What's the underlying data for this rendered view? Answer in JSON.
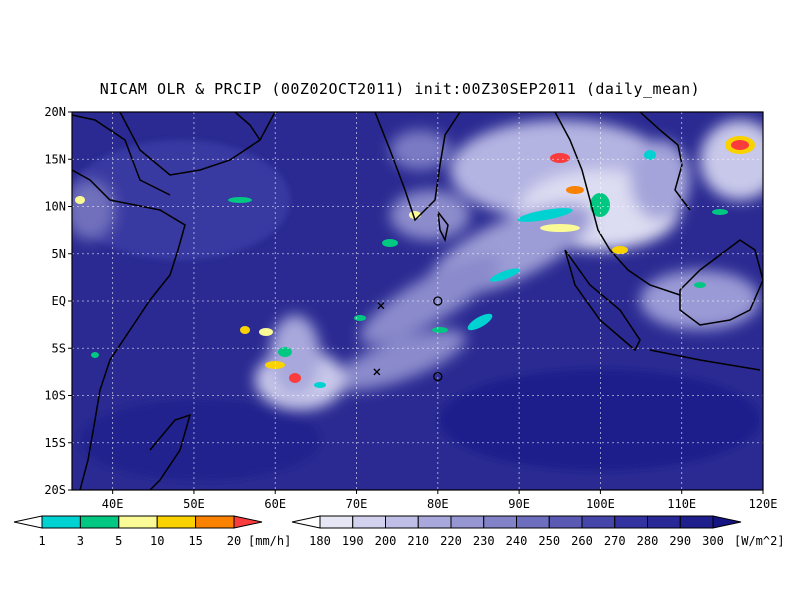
{
  "title": "NICAM OLR & PRCIP (00Z02OCT2011) init:00Z30SEP2011 (daily_mean)",
  "chart_data": {
    "type": "heatmap",
    "title": "NICAM OLR & PRCIP (00Z02OCT2011) init:00Z30SEP2011 (daily_mean)",
    "x_axis": {
      "ticks": [
        "40E",
        "50E",
        "60E",
        "70E",
        "80E",
        "90E",
        "100E",
        "110E",
        "120E"
      ],
      "range": [
        35,
        120
      ]
    },
    "y_axis": {
      "ticks": [
        "20N",
        "15N",
        "10N",
        "5N",
        "EQ",
        "5S",
        "10S",
        "15S",
        "20S"
      ],
      "range": [
        -20,
        20
      ]
    },
    "grid": true,
    "markers": [
      {
        "symbol": "x",
        "lon": 73,
        "lat": -0.5
      },
      {
        "symbol": "x",
        "lon": 72.5,
        "lat": -7.5
      },
      {
        "symbol": "o",
        "lon": 80,
        "lat": 0
      },
      {
        "symbol": "o",
        "lon": 80,
        "lat": -8
      }
    ],
    "precip_colorbar": {
      "levels": [
        "1",
        "3",
        "5",
        "10",
        "15",
        "20"
      ],
      "colors": [
        "#ffffff",
        "#00d2d2",
        "#00c882",
        "#fafa96",
        "#fad200",
        "#fa8200",
        "#fa3c3c"
      ],
      "unit": "[mm/h]"
    },
    "olr_colorbar": {
      "levels": [
        "180",
        "190",
        "200",
        "210",
        "220",
        "230",
        "240",
        "250",
        "260",
        "270",
        "280",
        "290",
        "300"
      ],
      "colors": [
        "#ffffff",
        "#e6e6f5",
        "#d2d2ee",
        "#bebee6",
        "#a8a8dc",
        "#9696d2",
        "#8282c8",
        "#6e6ebe",
        "#5a5ab4",
        "#4646aa",
        "#3232a0",
        "#282896",
        "#1e1e8c",
        "#141482"
      ],
      "unit": "[W/m^2]"
    }
  }
}
